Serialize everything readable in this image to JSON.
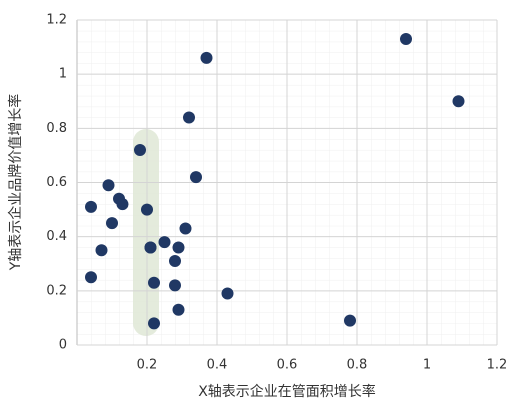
{
  "chart_data": {
    "type": "scatter",
    "x_label": "X轴表示企业在管面积增长率",
    "y_label": "Y轴表示企业品牌价值增长率",
    "color": "#203864",
    "x": [
      0.04,
      0.04,
      0.07,
      0.09,
      0.1,
      0.12,
      0.13,
      0.18,
      0.2,
      0.21,
      0.21,
      0.22,
      0.22,
      0.25,
      0.28,
      0.28,
      0.29,
      0.29,
      0.31,
      0.32,
      0.34,
      0.37,
      0.43,
      0.78,
      0.94,
      1.09
    ],
    "values": [
      0.51,
      0.25,
      0.35,
      0.59,
      0.45,
      0.54,
      0.52,
      0.72,
      0.5,
      0.36,
      0.36,
      0.23,
      0.08,
      0.38,
      0.31,
      0.22,
      0.36,
      0.13,
      0.43,
      0.84,
      0.62,
      1.06,
      0.19,
      0.09,
      1.13,
      0.9
    ],
    "xlim": [
      0,
      1.2
    ],
    "xticks": [
      0.2,
      0.4,
      0.6,
      0.8,
      1,
      1.2
    ],
    "ylim": [
      0,
      1.2
    ],
    "yticks": [
      0,
      0.2,
      0.4,
      0.6,
      0.8,
      1,
      1.2
    ],
    "grid": true
  }
}
